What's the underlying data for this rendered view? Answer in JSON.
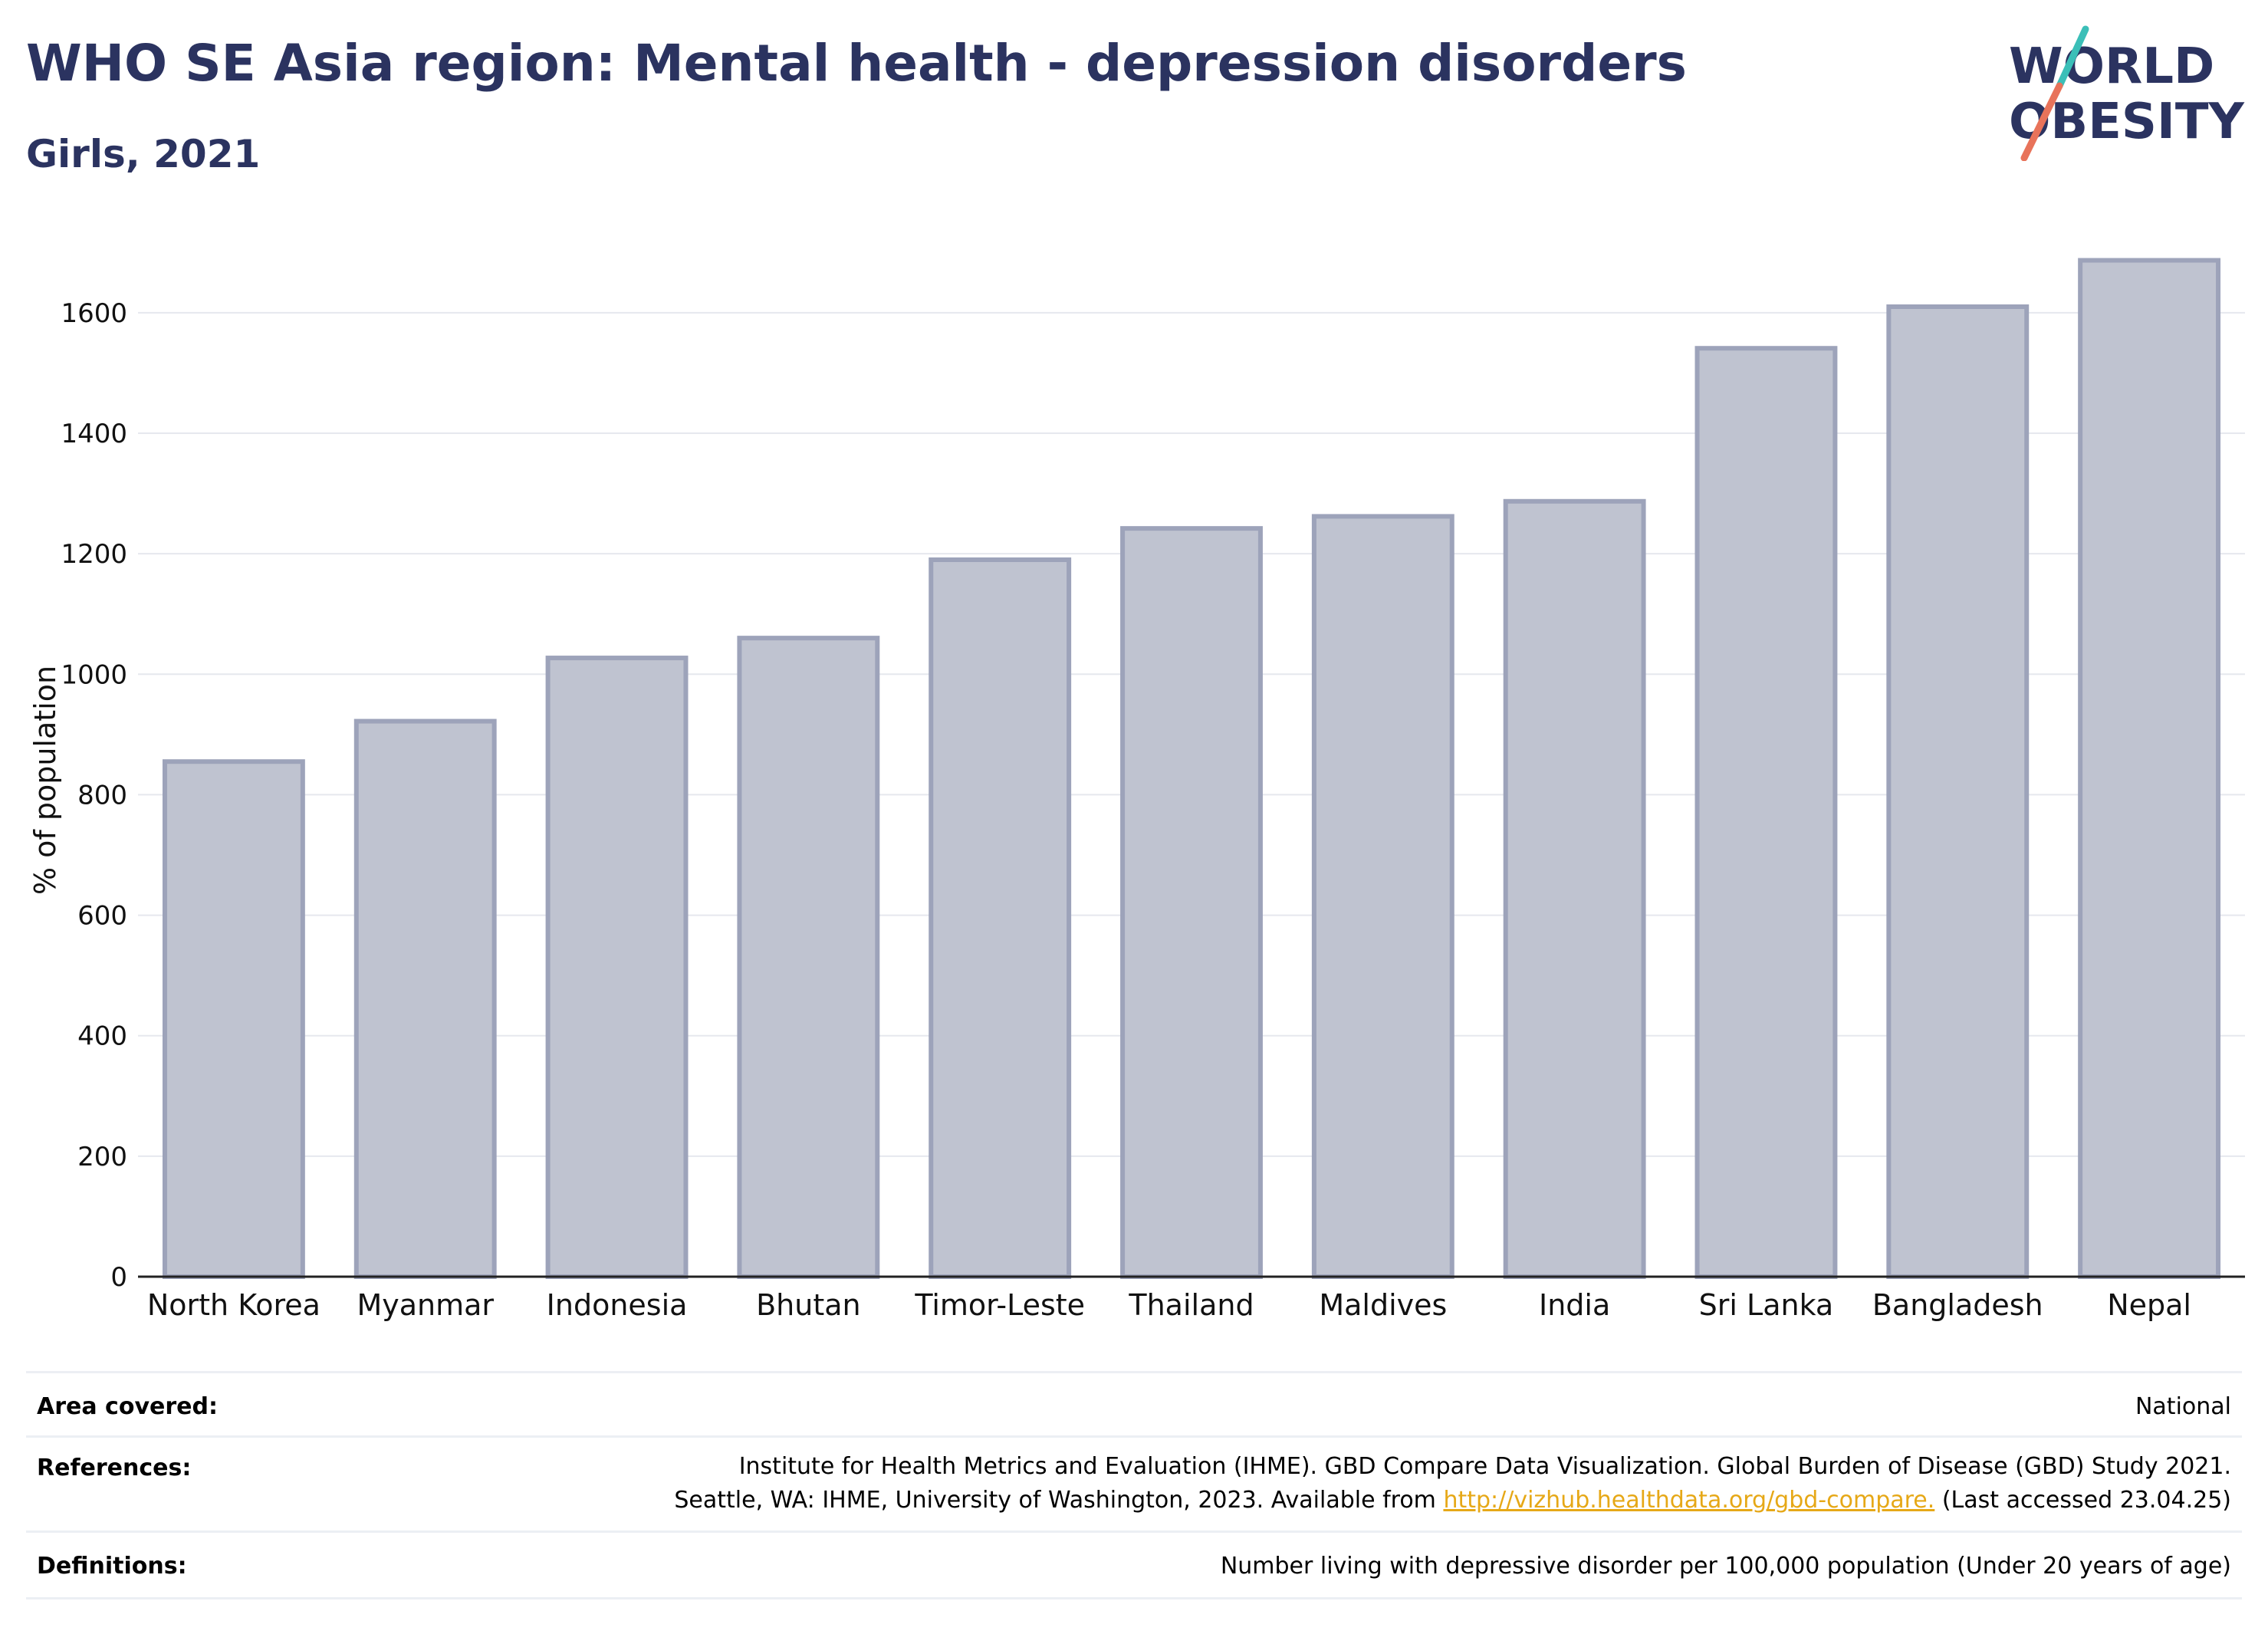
{
  "header": {
    "title": "WHO SE Asia region: Mental health - depression disorders",
    "subtitle": "Girls, 2021"
  },
  "logo": {
    "line1": "WORLD",
    "line2": "OBESITY",
    "colors": {
      "text": "#2b3360",
      "slash_teal": "#3bbfb8",
      "slash_coral": "#e8735a"
    }
  },
  "chart_data": {
    "type": "bar",
    "categories": [
      "North Korea",
      "Myanmar",
      "Indonesia",
      "Bhutan",
      "Timor-Leste",
      "Thailand",
      "Maldives",
      "India",
      "Sri Lanka",
      "Bangladesh",
      "Nepal"
    ],
    "values": [
      855,
      922,
      1027,
      1060,
      1190,
      1242,
      1262,
      1287,
      1541,
      1610,
      1687
    ],
    "ylabel": "% of population",
    "xlabel": "",
    "ylim": [
      0,
      1750
    ],
    "yticks": [
      0,
      200,
      400,
      600,
      800,
      1000,
      1200,
      1400,
      1600
    ],
    "grid": true,
    "bar_fill": "#bfc3d0",
    "bar_stroke": "#9da3ba"
  },
  "footer": {
    "area_label": "Area covered:",
    "area_value": "National",
    "references_label": "References:",
    "references_line1": "Institute for Health Metrics and Evaluation (IHME). GBD Compare Data Visualization. Global Burden of Disease (GBD) Study 2021.",
    "references_line2_prefix": "Seattle, WA: IHME, University of Washington, 2023. Available from ",
    "references_link": "http://vizhub.healthdata.org/gbd-compare.",
    "references_line2_suffix": " (Last accessed 23.04.25)",
    "definitions_label": "Definitions:",
    "definitions_value": "Number living with depressive disorder per 100,000 population (Under 20 years of age)"
  }
}
